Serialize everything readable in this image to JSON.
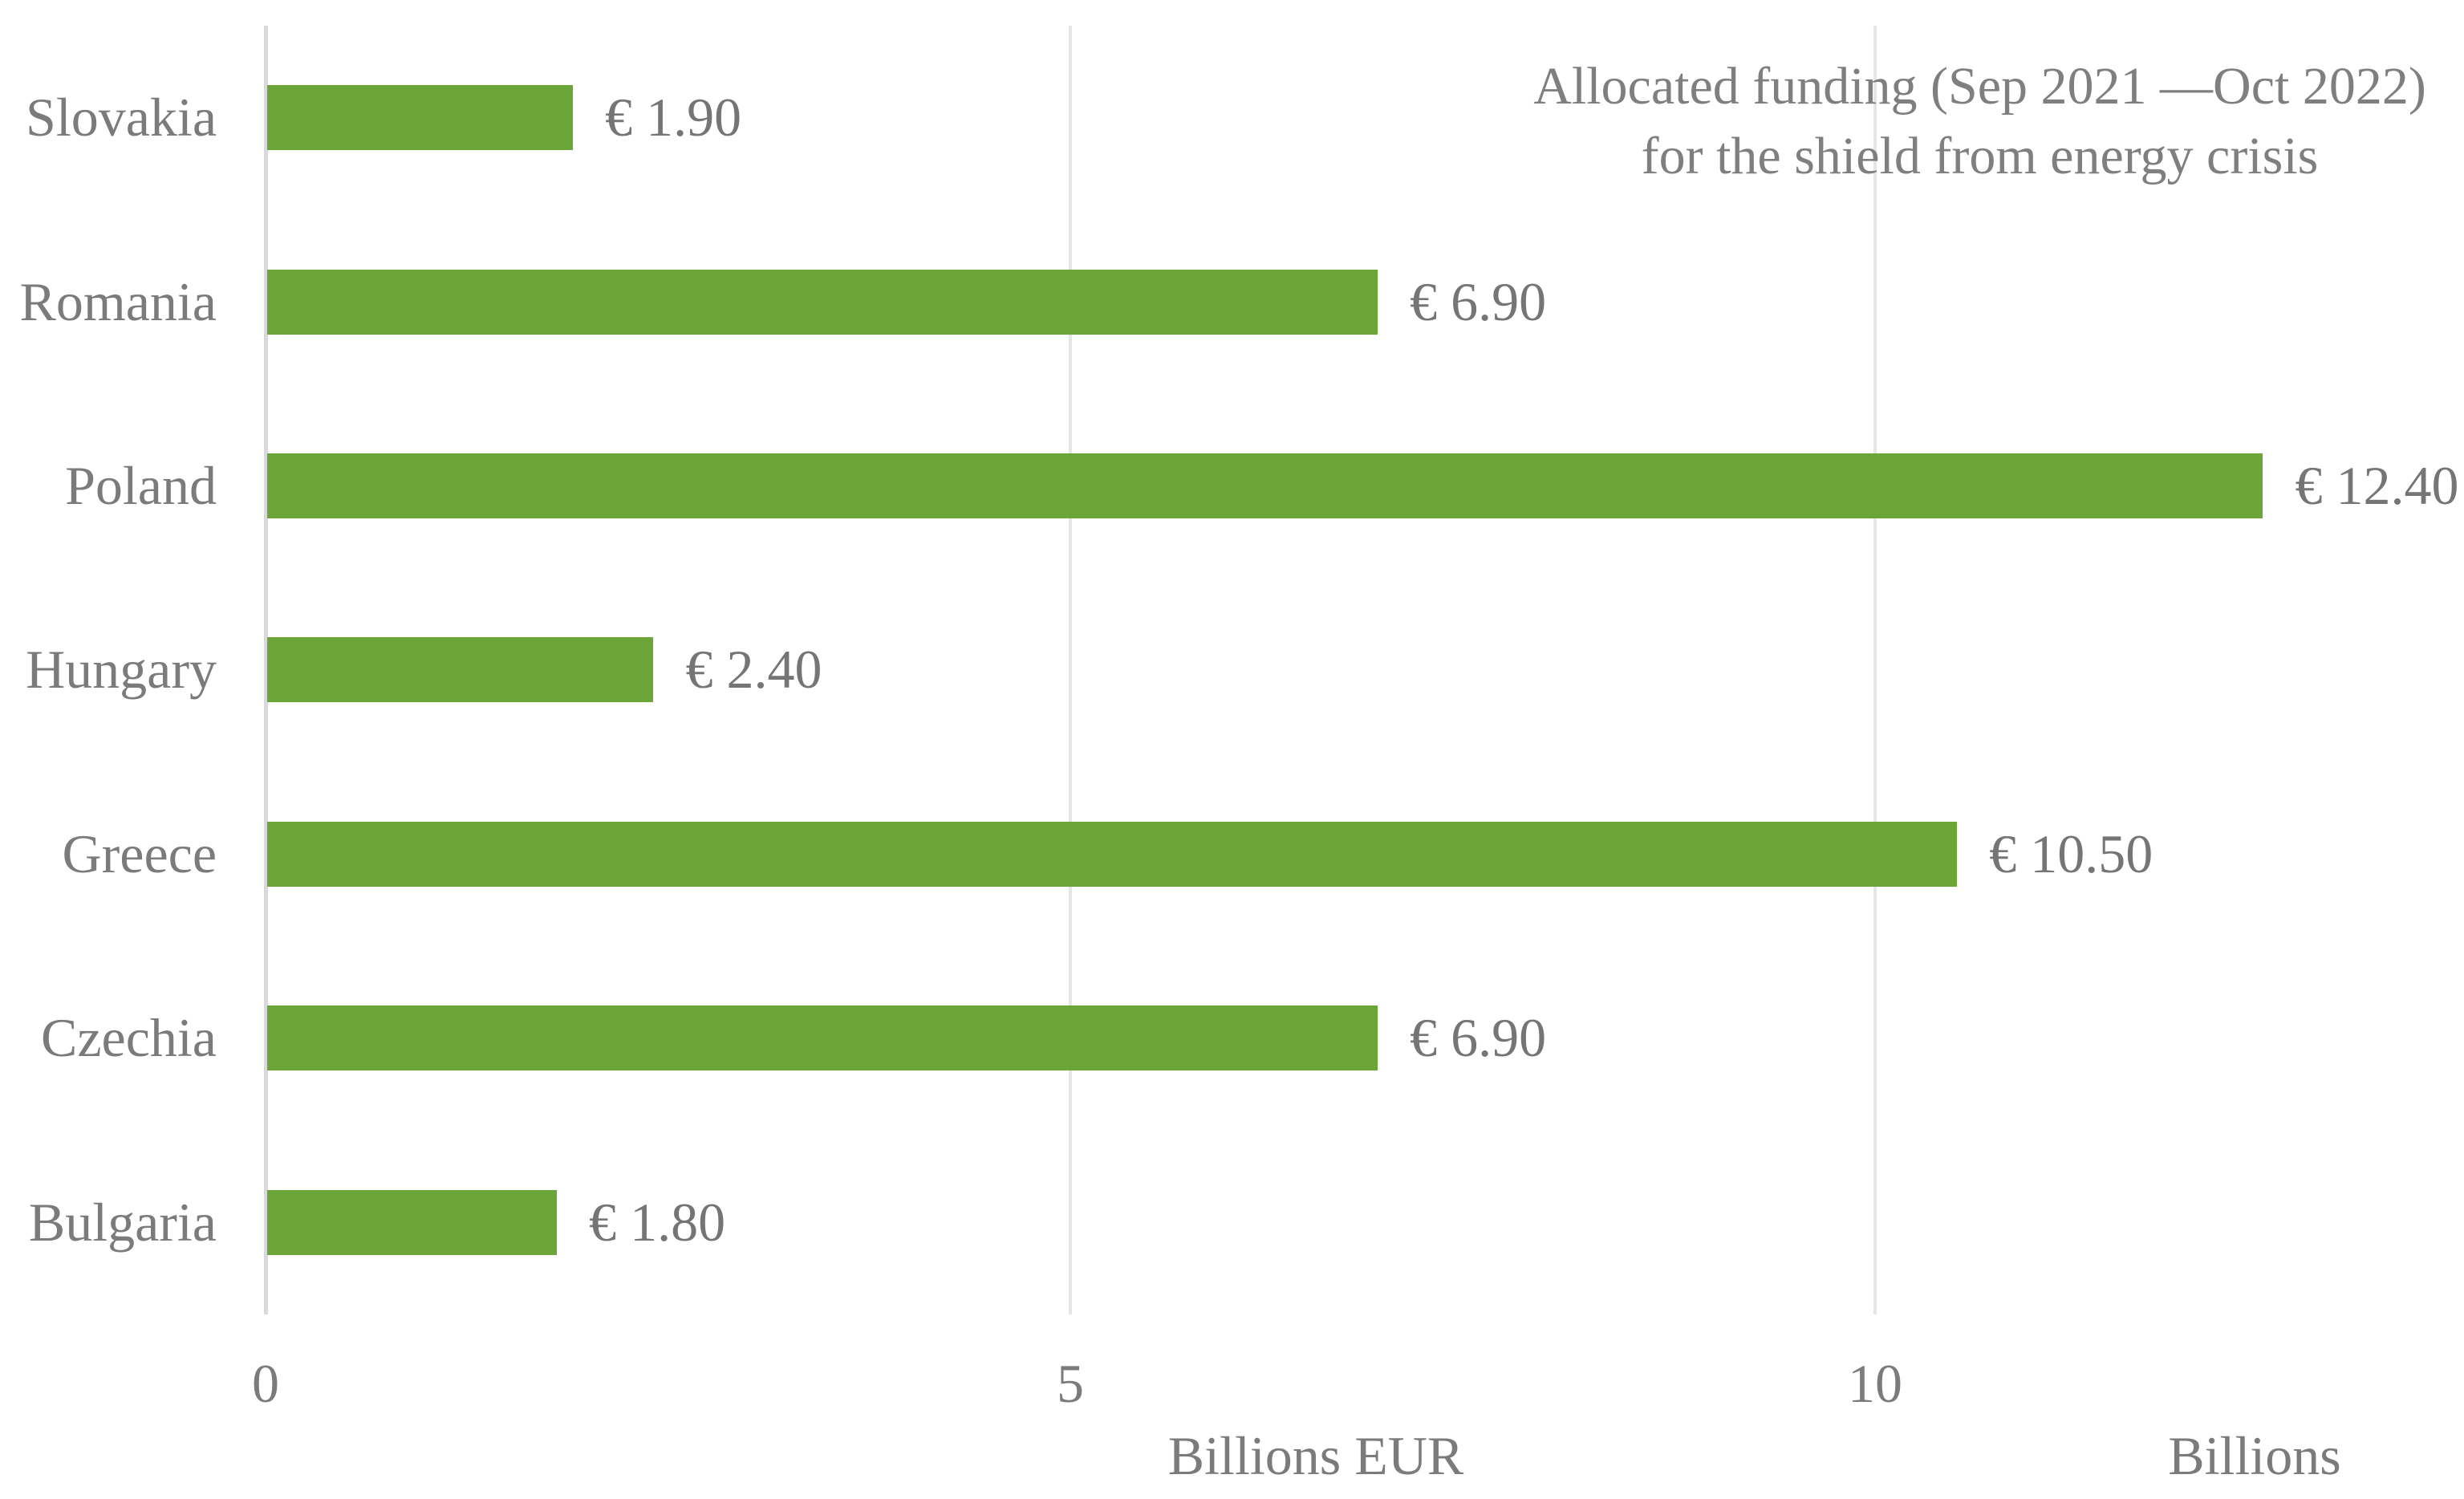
{
  "chart_data": {
    "type": "bar",
    "orientation": "horizontal",
    "title_line1": "Allocated funding (Sep 2021 —Oct 2022)",
    "title_line2": "for the shield from energy crisis",
    "categories": [
      "Slovakia",
      "Romania",
      "Poland",
      "Hungary",
      "Greece",
      "Czechia",
      "Bulgaria"
    ],
    "values": [
      1.9,
      6.9,
      12.4,
      2.4,
      10.5,
      6.9,
      1.8
    ],
    "value_labels": [
      "€ 1.90",
      "€ 6.90",
      "€ 12.40",
      "€ 2.40",
      "€ 10.50",
      "€ 6.90",
      "€ 1.80"
    ],
    "x_ticks": [
      0,
      5,
      10
    ],
    "x_tick_labels": [
      "0",
      "5",
      "10"
    ],
    "xlim": [
      0,
      12.5
    ],
    "xlabel": "Billions EUR",
    "units_label": "Billions",
    "grid": true,
    "legend_position": "none",
    "bar_color": "#6BA437",
    "axis_line_color": "#D9D9D9",
    "gridline_color": "#E6E6E6",
    "text_color": "#7B7B7B"
  }
}
